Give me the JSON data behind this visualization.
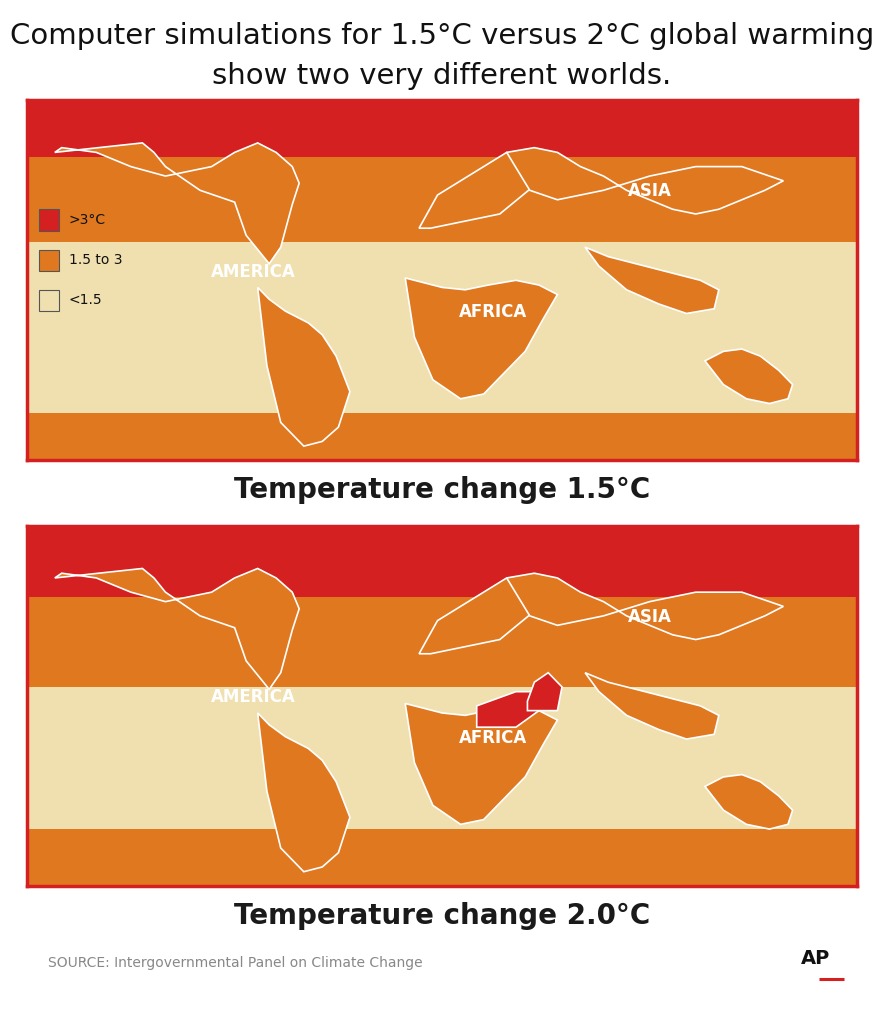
{
  "title_line1": "Computer simulations for 1.5°C versus 2°C global warming",
  "title_line2": "show two very different worlds.",
  "title_fontsize": 21,
  "title_color": "#111111",
  "bg_color": "#ffffff",
  "map1_label": "Temperature change 1.5°C",
  "map2_label": "Temperature change 2.0°C",
  "label_bg_color": "#E07020",
  "label_text_color": "#1a1a1a",
  "label_fontsize": 20,
  "legend_items": [
    {
      "label": ">3°C",
      "color": "#D42020"
    },
    {
      "label": "1.5 to 3",
      "color": "#E07820"
    },
    {
      "label": "<1.5",
      "color": "#F0E0B0"
    }
  ],
  "color_red": "#D42020",
  "color_orange": "#E07820",
  "color_light": "#F0E0B0",
  "color_border": "#D42020",
  "color_coast": "#ffffff",
  "source_text": "SOURCE: Intergovernmental Panel on Climate Change",
  "source_fontsize": 10,
  "ap_text": "AP",
  "america_label": "AMERICA",
  "africa_label": "AFRICA",
  "asia_label": "ASIA",
  "continent_fontsize": 14,
  "continent_color": "#ffffff",
  "map1_arctic_lat": 66,
  "map1_orange_lat": 30,
  "map1_south_lat": -42,
  "map2_arctic_lat": 60,
  "map2_orange_lat": 22,
  "map2_south_lat": -38,
  "lat_min": -62,
  "lat_max": 90
}
